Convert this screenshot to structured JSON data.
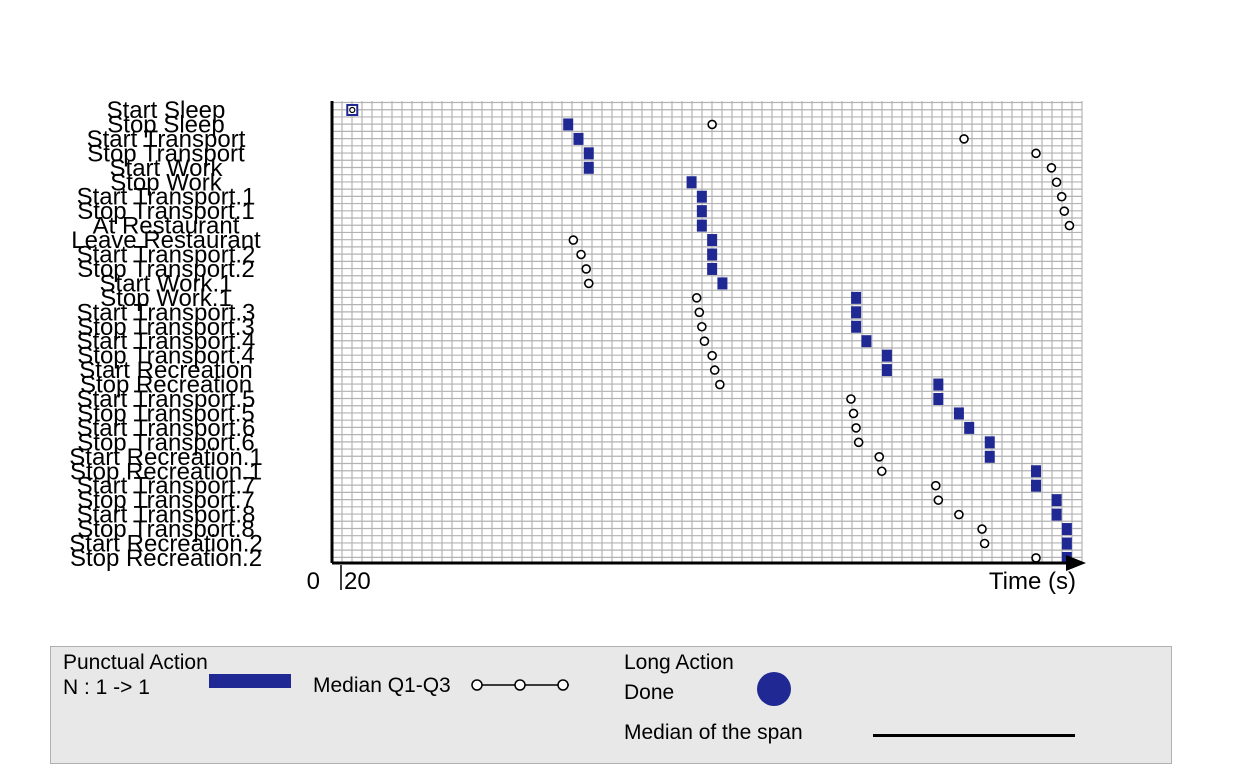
{
  "chart_data": {
    "type": "timeline",
    "xlabel": "Time (s)",
    "x_tick_labels": [
      "0",
      "20"
    ],
    "xlim": [
      0,
      1420
    ],
    "grid": true,
    "colors": {
      "bar": "#1f2893",
      "grid": "#b3b3b3",
      "axis": "#000000"
    },
    "actions": [
      {
        "label": "Start Sleep",
        "median": 20,
        "q1": 20,
        "q3": 20
      },
      {
        "label": "Stop Sleep",
        "median": 440,
        "q1": 440,
        "q3": 720
      },
      {
        "label": "Start Transport",
        "median": 460,
        "q1": 460,
        "q3": 1210
      },
      {
        "label": "Stop Transport",
        "median": 480,
        "q1": 480,
        "q3": 1350
      },
      {
        "label": "Start Work",
        "median": 480,
        "q1": 480,
        "q3": 1380
      },
      {
        "label": "Stop Work",
        "median": 680,
        "q1": 680,
        "q3": 1390
      },
      {
        "label": "Start Transport.1",
        "median": 700,
        "q1": 700,
        "q3": 1400
      },
      {
        "label": "Stop Transport.1",
        "median": 700,
        "q1": 700,
        "q3": 1405
      },
      {
        "label": "At Restaurant",
        "median": 700,
        "q1": 700,
        "q3": 1415
      },
      {
        "label": "Leave Restaurant",
        "median": 720,
        "q1": 450,
        "q3": 720
      },
      {
        "label": "Start Transport.2",
        "median": 720,
        "q1": 465,
        "q3": 720
      },
      {
        "label": "Stop Transport.2",
        "median": 720,
        "q1": 475,
        "q3": 720
      },
      {
        "label": "Start Work.1",
        "median": 740,
        "q1": 480,
        "q3": 740
      },
      {
        "label": "Stop Work.1",
        "median": 1000,
        "q1": 690,
        "q3": 1000
      },
      {
        "label": "Start Transport.3",
        "median": 1000,
        "q1": 695,
        "q3": 1000
      },
      {
        "label": "Stop Transport.3",
        "median": 1000,
        "q1": 700,
        "q3": 1000
      },
      {
        "label": "Start Transport.4",
        "median": 1020,
        "q1": 705,
        "q3": 1020
      },
      {
        "label": "Stop Transport.4",
        "median": 1060,
        "q1": 720,
        "q3": 1060
      },
      {
        "label": "Start Recreation",
        "median": 1060,
        "q1": 725,
        "q3": 1060
      },
      {
        "label": "Stop Recreation",
        "median": 1160,
        "q1": 735,
        "q3": 1160
      },
      {
        "label": "Start Transport.5",
        "median": 1160,
        "q1": 990,
        "q3": 1160
      },
      {
        "label": "Stop Transport.5",
        "median": 1200,
        "q1": 995,
        "q3": 1200
      },
      {
        "label": "Start Transport.6",
        "median": 1220,
        "q1": 1000,
        "q3": 1220
      },
      {
        "label": "Stop Transport.6",
        "median": 1260,
        "q1": 1005,
        "q3": 1260
      },
      {
        "label": "Start Recreation.1",
        "median": 1260,
        "q1": 1045,
        "q3": 1260
      },
      {
        "label": "Stop Recreation.1",
        "median": 1350,
        "q1": 1050,
        "q3": 1350
      },
      {
        "label": "Start Transport.7",
        "median": 1350,
        "q1": 1155,
        "q3": 1350
      },
      {
        "label": "Stop Transport.7",
        "median": 1390,
        "q1": 1160,
        "q3": 1390
      },
      {
        "label": "Start Transport.8",
        "median": 1390,
        "q1": 1200,
        "q3": 1390
      },
      {
        "label": "Stop Transport.8",
        "median": 1410,
        "q1": 1245,
        "q3": 1410
      },
      {
        "label": "Start Recreation.2",
        "median": 1410,
        "q1": 1250,
        "q3": 1410
      },
      {
        "label": "Stop Recreation.2",
        "median": 1410,
        "q1": 1350,
        "q3": 1410
      }
    ]
  },
  "legend": {
    "punctual_title": "Punctual Action",
    "punctual_n": "N : 1 -> 1",
    "median_q_label": "Median Q1-Q3",
    "long_title": "Long Action",
    "done_label": "Done",
    "span_label": "Median of the span"
  }
}
